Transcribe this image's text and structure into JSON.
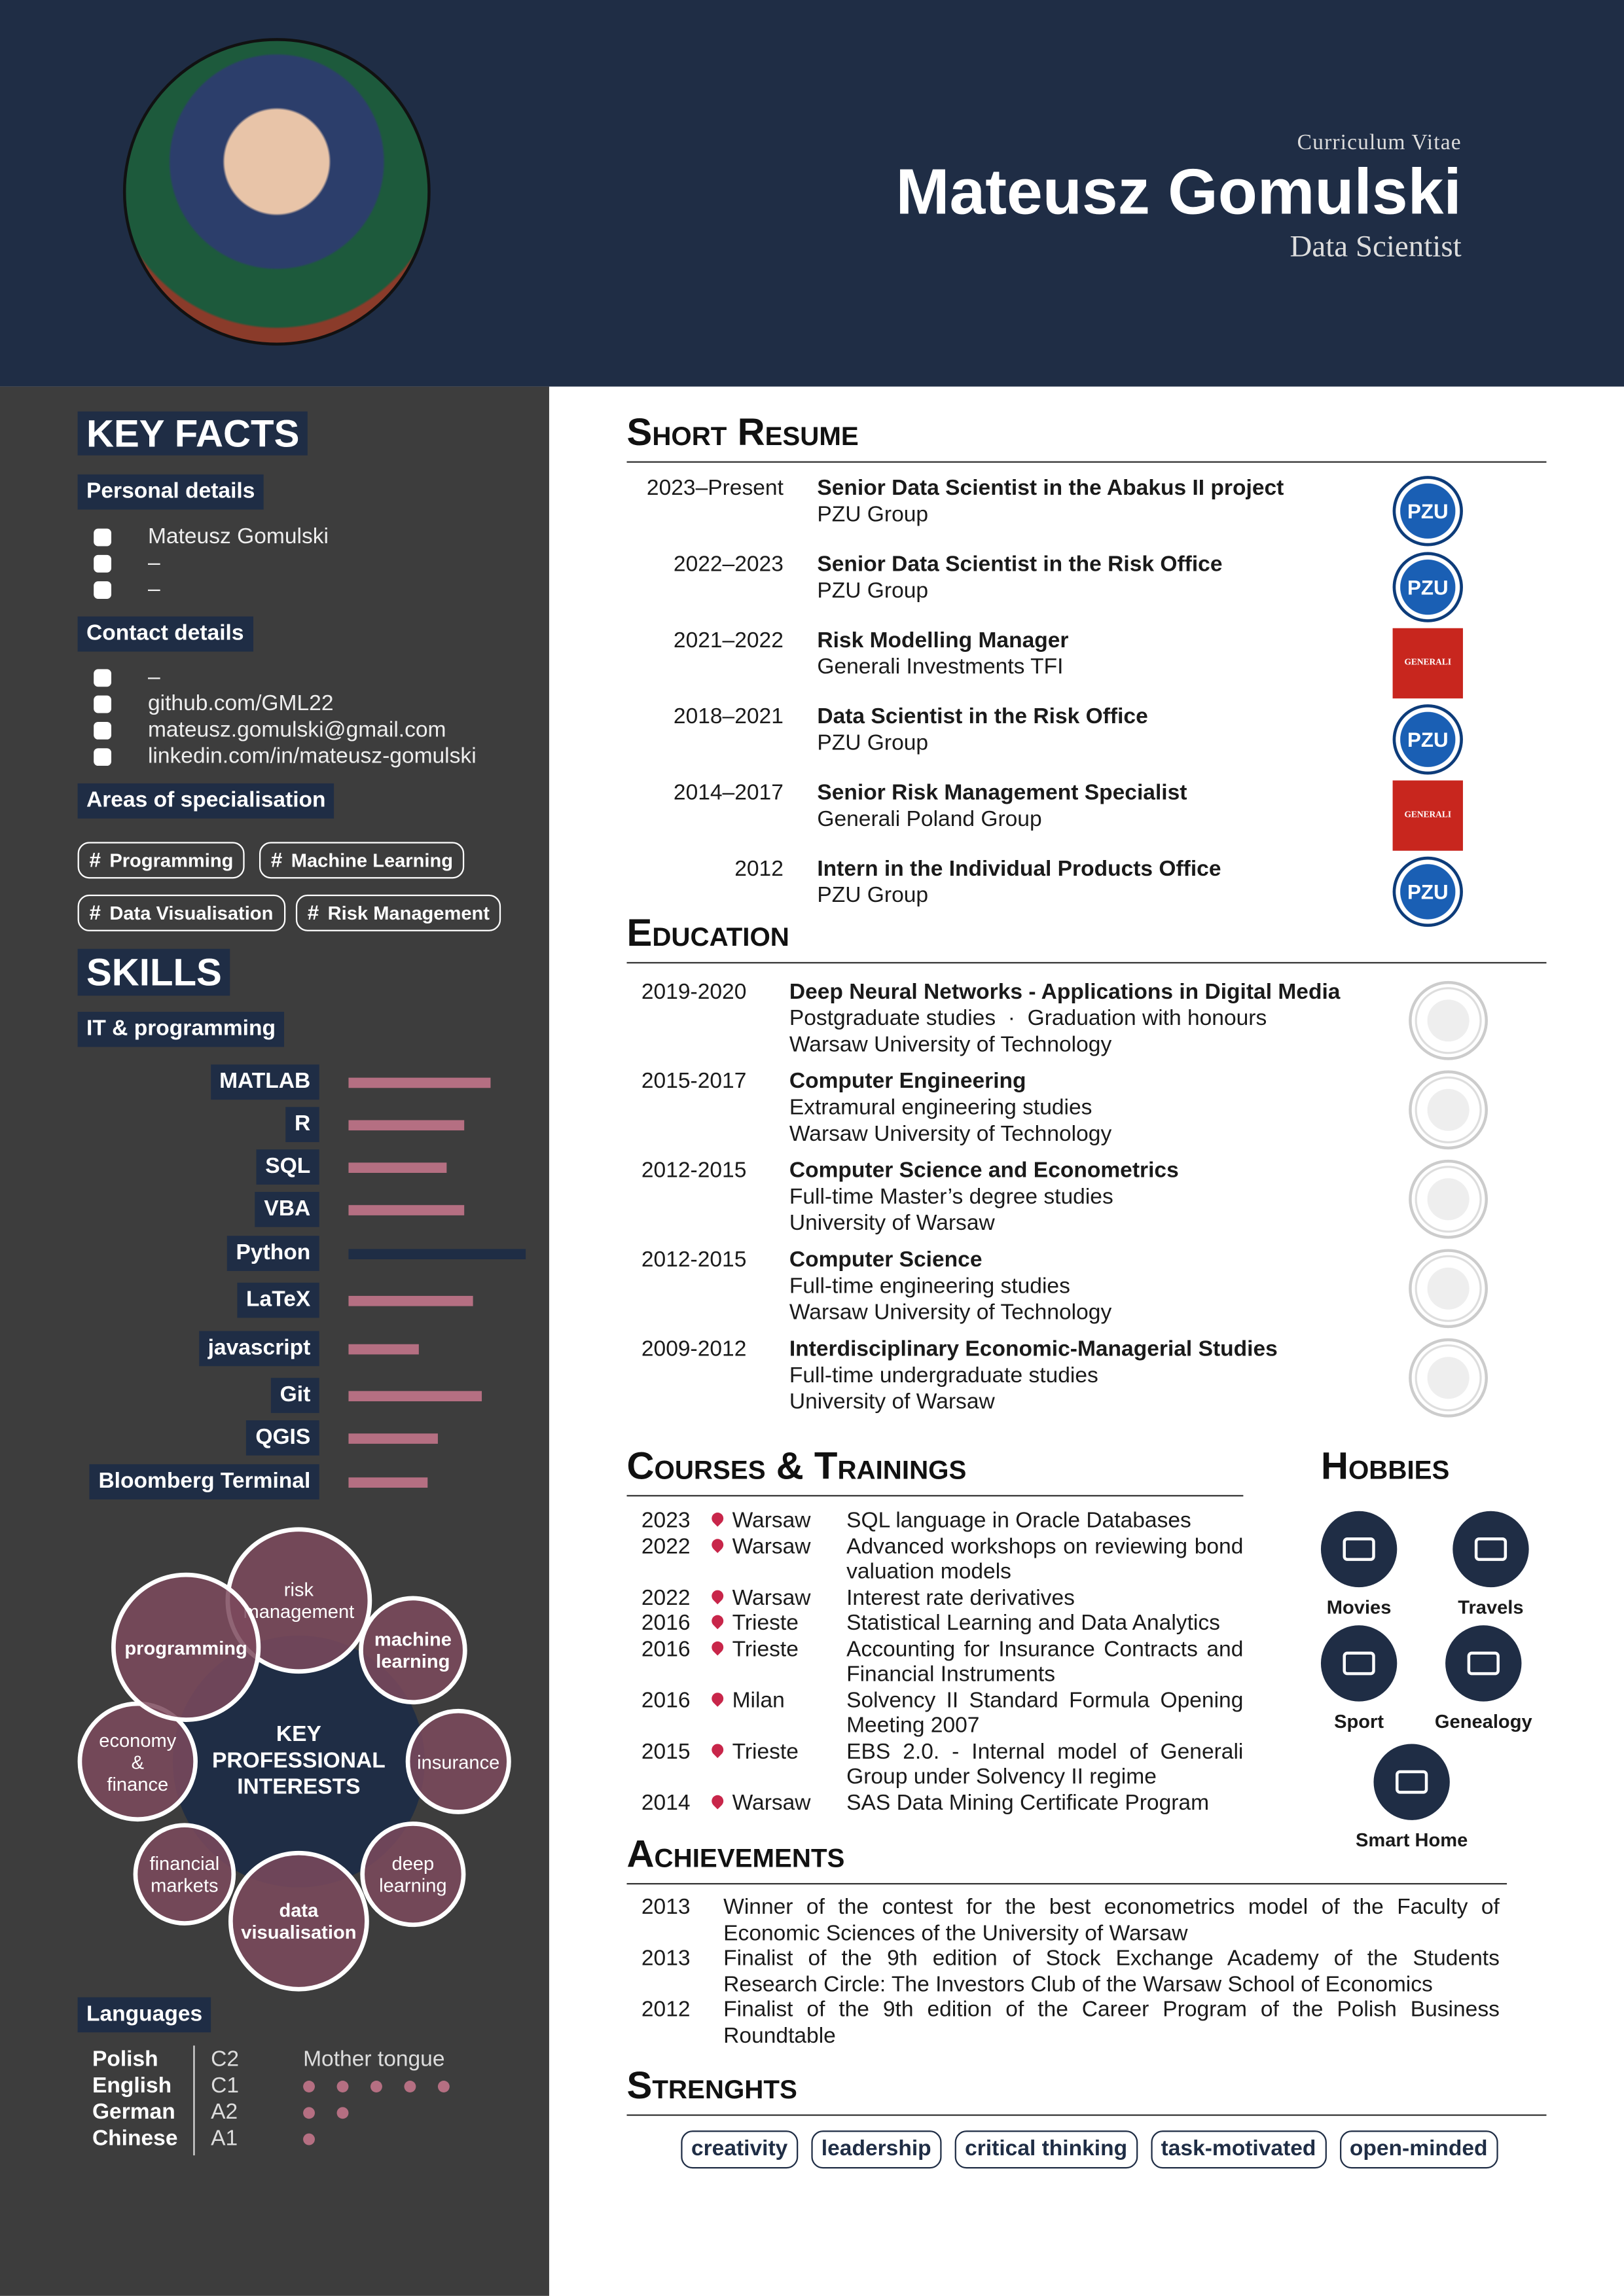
{
  "header": {
    "subtitle": "Curriculum Vitae",
    "name": "Mateusz Gomulski",
    "role": "Data Scientist"
  },
  "sidebar": {
    "key_facts_title": "KEY FACTS",
    "personal_title": "Personal details",
    "personal": [
      "Mateusz Gomulski",
      "–",
      "–"
    ],
    "contact_title": "Contact details",
    "contact": [
      "–",
      "github.com/GML22",
      "mateusz.gomulski@gmail.com",
      "linkedin.com/in/mateusz-gomulski"
    ],
    "areas_title": "Areas of specialisation",
    "tag_symbol": "#",
    "areas": [
      "Programming",
      "Machine Learning",
      "Data Visualisation",
      "Risk Management"
    ],
    "skills_title": "SKILLS",
    "it_title": "IT & programming",
    "skill_scale": [
      0,
      10
    ],
    "skills": [
      {
        "name": "MATLAB",
        "level": 8,
        "color": "#b56f82"
      },
      {
        "name": "R",
        "level": 6.5,
        "color": "#b56f82"
      },
      {
        "name": "SQL",
        "level": 5.5,
        "color": "#b56f82"
      },
      {
        "name": "VBA",
        "level": 6.5,
        "color": "#b56f82"
      },
      {
        "name": "Python",
        "level": 10,
        "color": "#1f2d45"
      },
      {
        "name": "LaTeX",
        "level": 7,
        "color": "#b56f82"
      },
      {
        "name": "javascript",
        "level": 4,
        "color": "#b56f82"
      },
      {
        "name": "Git",
        "level": 7.5,
        "color": "#b56f82"
      },
      {
        "name": "QGIS",
        "level": 5,
        "color": "#b56f82"
      },
      {
        "name": "Bloomberg Terminal",
        "level": 4.5,
        "color": "#b56f82"
      }
    ],
    "interests": {
      "center": [
        "KEY",
        "PROFESSIONAL",
        "INTERESTS"
      ],
      "bubbles": [
        {
          "lines": [
            "risk",
            "management"
          ],
          "bold": false
        },
        {
          "lines": [
            "machine",
            "learning"
          ],
          "bold": true
        },
        {
          "lines": [
            "insurance"
          ],
          "bold": false
        },
        {
          "lines": [
            "deep",
            "learning"
          ],
          "bold": false
        },
        {
          "lines": [
            "data",
            "visualisation"
          ],
          "bold": true
        },
        {
          "lines": [
            "financial",
            "markets"
          ],
          "bold": false
        },
        {
          "lines": [
            "economy",
            "&",
            "finance"
          ],
          "bold": false
        },
        {
          "lines": [
            "programming"
          ],
          "bold": true
        }
      ]
    },
    "languages_title": "Languages",
    "languages": [
      {
        "name": "Polish",
        "level": "C2",
        "note": "Mother tongue"
      },
      {
        "name": "English",
        "level": "C1",
        "dots": 5
      },
      {
        "name": "German",
        "level": "A2",
        "dots": 2
      },
      {
        "name": "Chinese",
        "level": "A1",
        "dots": 1
      }
    ]
  },
  "resume": {
    "title": "Short Resume",
    "items": [
      {
        "dates": "2023–Present",
        "role": "Senior Data Scientist in the Abakus II project",
        "company": "PZU Group",
        "logo": "PZU"
      },
      {
        "dates": "2022–2023",
        "role": "Senior Data Scientist in the Risk Office",
        "company": "PZU Group",
        "logo": "PZU"
      },
      {
        "dates": "2021–2022",
        "role": "Risk Modelling Manager",
        "company": "Generali Investments TFI",
        "logo": "GENERALI"
      },
      {
        "dates": "2018–2021",
        "role": "Data Scientist in the Risk Office",
        "company": "PZU Group",
        "logo": "PZU"
      },
      {
        "dates": "2014–2017",
        "role": "Senior Risk Management Specialist",
        "company": "Generali Poland Group",
        "logo": "GENERALI"
      },
      {
        "dates": "2012",
        "role": "Intern in the Individual Products Office",
        "company": "PZU Group",
        "logo": "PZU"
      }
    ]
  },
  "education": {
    "title": "Education",
    "items": [
      {
        "years": "2019-2020",
        "title": "Deep Neural Networks - Applications in Digital Media",
        "lines": [
          "Postgraduate studies  ·  Graduation with honours",
          "Warsaw University of Technology"
        ]
      },
      {
        "years": "2015-2017",
        "title": "Computer Engineering",
        "lines": [
          "Extramural engineering studies",
          "Warsaw University of Technology"
        ]
      },
      {
        "years": "2012-2015",
        "title": "Computer Science and Econometrics",
        "lines": [
          "Full-time Master’s degree studies",
          "University of Warsaw"
        ]
      },
      {
        "years": "2012-2015",
        "title": "Computer Science",
        "lines": [
          "Full-time engineering studies",
          "Warsaw University of Technology"
        ]
      },
      {
        "years": "2009-2012",
        "title": "Interdisciplinary Economic-Managerial Studies",
        "lines": [
          "Full-time undergraduate studies",
          "University of Warsaw"
        ]
      }
    ]
  },
  "courses": {
    "title": "Courses & Trainings",
    "items": [
      {
        "year": "2023",
        "city": "Warsaw",
        "text": "SQL language in Oracle Databases"
      },
      {
        "year": "2022",
        "city": "Warsaw",
        "text": "Advanced workshops on reviewing bond valuation models"
      },
      {
        "year": "2022",
        "city": "Warsaw",
        "text": "Interest rate derivatives"
      },
      {
        "year": "2016",
        "city": "Trieste",
        "text": "Statistical Learning and Data Analytics"
      },
      {
        "year": "2016",
        "city": "Trieste",
        "text": "Accounting for Insurance Contracts and Financial Instruments"
      },
      {
        "year": "2016",
        "city": "Milan",
        "text": "Solvency II Standard Formula Opening Meeting 2007"
      },
      {
        "year": "2015",
        "city": "Trieste",
        "text": "EBS 2.0. - Internal model of Generali Group under Solvency II regime"
      },
      {
        "year": "2014",
        "city": "Warsaw",
        "text": "SAS Data Mining Certificate Program"
      }
    ]
  },
  "hobbies": {
    "title": "Hobbies",
    "items": [
      "Movies",
      "Travels",
      "Sport",
      "Genealogy",
      "Smart Home"
    ]
  },
  "achievements": {
    "title": "Achievements",
    "items": [
      {
        "year": "2013",
        "text": "Winner of the contest for the best econometrics model of the Faculty of Economic Sciences of the University of Warsaw"
      },
      {
        "year": "2013",
        "text": "Finalist of the 9th edition of Stock Exchange Academy of the Students Research Circle: The Investors Club of the Warsaw School of Economics"
      },
      {
        "year": "2012",
        "text": "Finalist of the 9th edition of the Career Program of the Polish Business Roundtable"
      }
    ]
  },
  "strengths": {
    "title": "Strenghts",
    "items": [
      "creativity",
      "leadership",
      "critical thinking",
      "task-motivated",
      "open-minded"
    ]
  }
}
